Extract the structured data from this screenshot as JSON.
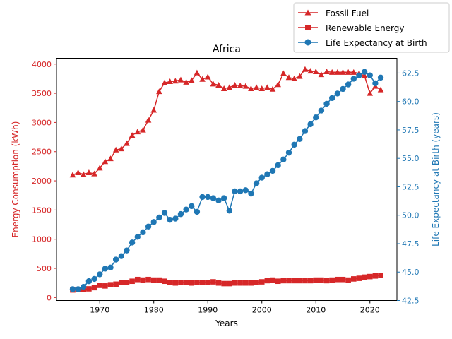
{
  "chart_data": {
    "type": "line",
    "title": "Africa",
    "xlabel": "Years",
    "ylabel_left": "Energy Consumption (kWh)",
    "ylabel_right": "Life Expectancy at Birth (years)",
    "xlim": [
      1962,
      2025
    ],
    "ylim_left": [
      -50,
      4100
    ],
    "ylim_right": [
      42.5,
      63.8
    ],
    "x_ticks": [
      "1970",
      "1980",
      "1990",
      "2000",
      "2010",
      "2020"
    ],
    "y_ticks_left": [
      "0",
      "500",
      "1000",
      "1500",
      "2000",
      "2500",
      "3000",
      "3500",
      "4000"
    ],
    "y_ticks_right": [
      "42.5",
      "45.0",
      "47.5",
      "50.0",
      "52.5",
      "55.0",
      "57.5",
      "60.0",
      "62.5"
    ],
    "colors": {
      "energy": "#d62728",
      "life": "#1f77b4"
    },
    "legend_position": "top-right",
    "years": [
      1965,
      1966,
      1967,
      1968,
      1969,
      1970,
      1971,
      1972,
      1973,
      1974,
      1975,
      1976,
      1977,
      1978,
      1979,
      1980,
      1981,
      1982,
      1983,
      1984,
      1985,
      1986,
      1987,
      1988,
      1989,
      1990,
      1991,
      1992,
      1993,
      1994,
      1995,
      1996,
      1997,
      1998,
      1999,
      2000,
      2001,
      2002,
      2003,
      2004,
      2005,
      2006,
      2007,
      2008,
      2009,
      2010,
      2011,
      2012,
      2013,
      2014,
      2015,
      2016,
      2017,
      2018,
      2019,
      2020,
      2021,
      2022
    ],
    "series": [
      {
        "name": "Fossil Fuel",
        "axis": "left",
        "marker": "triangle",
        "values": [
          2100,
          2140,
          2110,
          2140,
          2120,
          2220,
          2330,
          2380,
          2530,
          2550,
          2640,
          2780,
          2840,
          2870,
          3040,
          3210,
          3530,
          3680,
          3700,
          3710,
          3730,
          3690,
          3720,
          3850,
          3740,
          3780,
          3660,
          3640,
          3580,
          3600,
          3640,
          3630,
          3620,
          3580,
          3600,
          3580,
          3600,
          3570,
          3650,
          3840,
          3770,
          3750,
          3790,
          3910,
          3880,
          3870,
          3820,
          3870,
          3860,
          3860,
          3860,
          3860,
          3860,
          3840,
          3800,
          3500,
          3620,
          3560
        ]
      },
      {
        "name": "Renewable Energy",
        "axis": "left",
        "marker": "square",
        "values": [
          130,
          140,
          140,
          150,
          170,
          210,
          200,
          220,
          230,
          260,
          260,
          280,
          310,
          300,
          310,
          300,
          300,
          280,
          260,
          250,
          260,
          260,
          250,
          260,
          260,
          260,
          270,
          250,
          240,
          240,
          250,
          250,
          250,
          250,
          260,
          270,
          290,
          300,
          280,
          290,
          290,
          290,
          290,
          290,
          290,
          300,
          300,
          290,
          300,
          310,
          310,
          300,
          320,
          330,
          350,
          360,
          370,
          380
        ]
      },
      {
        "name": "Life Expectancy at Birth",
        "axis": "right",
        "marker": "circle",
        "values": [
          43.5,
          43.5,
          43.7,
          44.2,
          44.4,
          44.8,
          45.3,
          45.4,
          46.1,
          46.4,
          46.9,
          47.6,
          48.1,
          48.5,
          49.0,
          49.4,
          49.8,
          50.2,
          49.6,
          49.7,
          50.1,
          50.5,
          50.8,
          50.3,
          51.6,
          51.6,
          51.5,
          51.3,
          51.5,
          50.4,
          52.1,
          52.1,
          52.2,
          51.9,
          52.8,
          53.3,
          53.6,
          53.9,
          54.4,
          54.9,
          55.5,
          56.2,
          56.7,
          57.4,
          58.0,
          58.6,
          59.2,
          59.8,
          60.3,
          60.7,
          61.1,
          61.5,
          62.0,
          62.3,
          62.6,
          62.3,
          61.6,
          62.1
        ]
      }
    ]
  }
}
